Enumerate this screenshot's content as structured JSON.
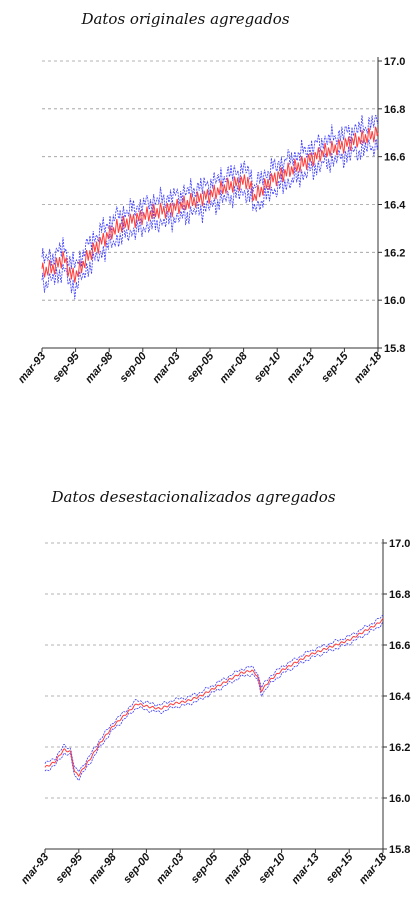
{
  "chart_data": [
    {
      "type": "line",
      "title": "Datos originales agregados",
      "xlabel": "",
      "ylabel": "",
      "ylim": [
        15.8,
        17.0
      ],
      "xlim": [
        1993.0,
        2018.0
      ],
      "y_axis_position": "right",
      "grid": "horizontal dashed",
      "y_ticks": [
        "17.0",
        "16.8",
        "16.6",
        "16.4",
        "16.2",
        "16.0",
        "15.8"
      ],
      "x_tick_labels": [
        "mar-93",
        "sep-95",
        "mar-98",
        "sep-00",
        "mar-03",
        "sep-05",
        "mar-08",
        "sep-10",
        "mar-13",
        "sep-15",
        "mar-18"
      ],
      "x_tick_values": [
        1993.0,
        1995.5,
        1998.0,
        2000.5,
        2003.0,
        2005.5,
        2008.0,
        2010.5,
        2013.0,
        2015.5,
        2018.0
      ],
      "seasonal": true,
      "band_width": 0.06,
      "colors": {
        "center": "#ff3b3b",
        "band": "#3a3aff",
        "grid": "#9a9a9a",
        "axis": "#333333"
      },
      "series": [
        {
          "x": [
            1993.0,
            1994.0,
            1994.6,
            1995.2,
            1995.6,
            1996.5,
            1997.5,
            1998.5,
            1999.5,
            2000.5,
            2001.5,
            2002.5,
            2003.5,
            2004.5,
            2005.5,
            2006.5,
            2007.5,
            2008.3,
            2008.8,
            2009.3,
            2010.0,
            2011.0,
            2012.0,
            2013.0,
            2014.0,
            2015.0,
            2016.0,
            2017.0,
            2018.0
          ],
          "values": [
            16.12,
            16.14,
            16.18,
            16.1,
            16.11,
            16.19,
            16.25,
            16.3,
            16.33,
            16.35,
            16.37,
            16.38,
            16.4,
            16.42,
            16.44,
            16.47,
            16.49,
            16.5,
            16.43,
            16.46,
            16.5,
            16.53,
            16.56,
            16.59,
            16.62,
            16.64,
            16.66,
            16.68,
            16.7
          ]
        }
      ]
    },
    {
      "type": "line",
      "title": "Datos desestacionalizados agregados",
      "xlabel": "",
      "ylabel": "",
      "ylim": [
        15.8,
        17.0
      ],
      "xlim": [
        1993.0,
        2018.0
      ],
      "y_axis_position": "right",
      "grid": "horizontal dashed",
      "y_ticks": [
        "17.0",
        "16.8",
        "16.6",
        "16.4",
        "16.2",
        "16.0",
        "15.8"
      ],
      "x_tick_labels": [
        "mar-93",
        "sep-95",
        "mar-98",
        "sep-00",
        "mar-03",
        "sep-05",
        "mar-08",
        "sep-10",
        "mar-13",
        "sep-15",
        "mar-18"
      ],
      "x_tick_values": [
        1993.0,
        1995.5,
        1998.0,
        2000.5,
        2003.0,
        2005.5,
        2008.0,
        2010.5,
        2013.0,
        2015.5,
        2018.0
      ],
      "seasonal": false,
      "band_width": 0.018,
      "colors": {
        "center": "#ff3b3b",
        "band": "#3a3aff",
        "grid": "#9a9a9a",
        "axis": "#333333"
      },
      "series": [
        {
          "x": [
            1993.0,
            1993.7,
            1994.4,
            1994.9,
            1995.2,
            1995.5,
            1996.3,
            1997.0,
            1998.0,
            1999.0,
            1999.8,
            2000.5,
            2001.5,
            2002.5,
            2003.5,
            2004.5,
            2005.5,
            2006.5,
            2007.5,
            2008.3,
            2008.7,
            2009.0,
            2009.6,
            2010.5,
            2011.5,
            2012.5,
            2013.5,
            2014.5,
            2015.5,
            2016.5,
            2017.5,
            2018.0
          ],
          "values": [
            16.12,
            16.14,
            16.19,
            16.18,
            16.1,
            16.09,
            16.15,
            16.21,
            16.28,
            16.33,
            16.37,
            16.36,
            16.35,
            16.37,
            16.38,
            16.4,
            16.43,
            16.46,
            16.49,
            16.5,
            16.48,
            16.42,
            16.46,
            16.5,
            16.53,
            16.56,
            16.58,
            16.6,
            16.62,
            16.65,
            16.68,
            16.7
          ]
        }
      ]
    }
  ]
}
